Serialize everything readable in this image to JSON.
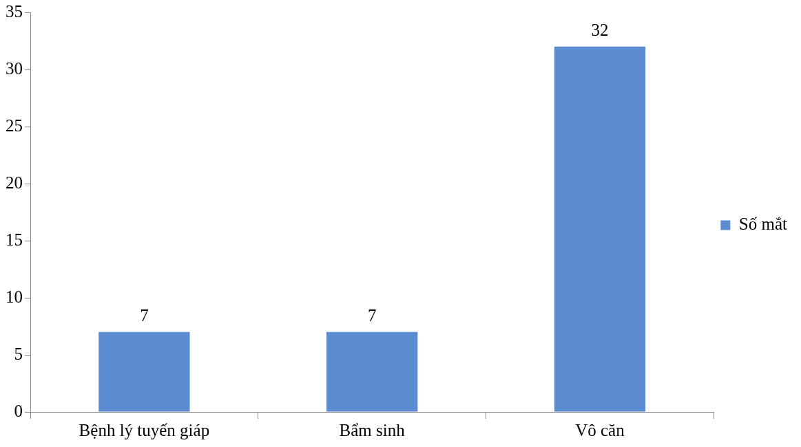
{
  "chart_data": {
    "type": "bar",
    "categories": [
      "Bệnh lý tuyến giáp",
      "Bẩm sinh",
      "Vô căn"
    ],
    "series": [
      {
        "name": "Số mắt",
        "color": "#5b8bd0",
        "values": [
          7,
          7,
          32
        ]
      }
    ],
    "ylim": [
      0,
      35
    ],
    "yticks": [
      0,
      5,
      10,
      15,
      20,
      25,
      30,
      35
    ],
    "grid": false,
    "legend": "right",
    "data_labels": true
  }
}
